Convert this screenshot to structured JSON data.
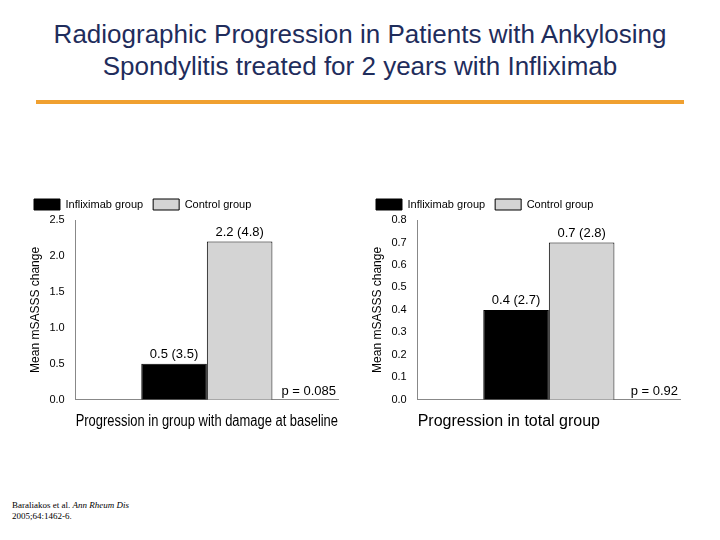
{
  "header": {
    "title": "Radiographic Progression in Patients with Ankylosing Spondylitis treated for 2 years with Infliximab"
  },
  "footer": {
    "citation": {
      "authors": "Baraliakos et al.",
      "journal": "Ann Rheum Dis",
      "details": "2005;64:1462-6."
    }
  },
  "chart_data": [
    {
      "type": "bar",
      "x_label": "Progression in group with damage at baseline",
      "y_label": "Mean mSASSS change",
      "categories": [
        null
      ],
      "series": [
        {
          "name": "Infliximab group",
          "color": "#000000",
          "values": [
            0.5
          ],
          "value_labels": [
            "0.5 (3.5)"
          ]
        },
        {
          "name": "Control group",
          "color": "#d4d4d4",
          "values": [
            2.2
          ],
          "value_labels": [
            "2.2 (4.8)"
          ]
        }
      ],
      "annotations": [
        "p = 0.085"
      ],
      "ylim": [
        0,
        2.5
      ],
      "yticks": [
        {
          "value": 0,
          "label": "0.0"
        },
        0.5,
        {
          "value": 1,
          "label": "1.0"
        },
        1.5,
        {
          "value": 2,
          "label": "2.0"
        },
        2.5
      ],
      "grid": false,
      "legend": "top-left",
      "data_labels": true,
      "tick_labels": "y"
    },
    {
      "type": "bar",
      "x_label": "Progression in total group",
      "y_label": "Mean mSASSS change",
      "categories": [
        null
      ],
      "series": [
        {
          "name": "Infliximab group",
          "color": "#000000",
          "values": [
            0.4
          ],
          "value_labels": [
            "0.4 (2.7)"
          ]
        },
        {
          "name": "Control group",
          "color": "#d4d4d4",
          "values": [
            0.7
          ],
          "value_labels": [
            "0.7 (2.8)"
          ]
        }
      ],
      "annotations": [
        "p = 0.92"
      ],
      "ylim": [
        0,
        0.8
      ],
      "yticks": [
        {
          "value": 0,
          "label": "0.0"
        },
        0.1,
        0.2,
        0.3,
        0.4,
        0.5,
        0.6,
        0.7,
        0.8
      ],
      "grid": false,
      "legend": "top-left",
      "data_labels": true,
      "tick_labels": "y"
    }
  ]
}
